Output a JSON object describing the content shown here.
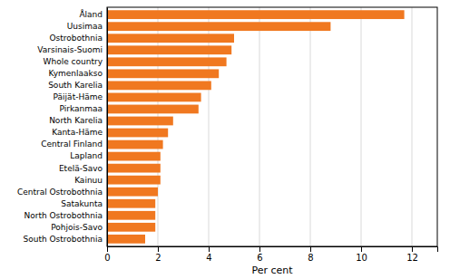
{
  "chart_data": {
    "type": "bar",
    "orientation": "horizontal",
    "categories": [
      "South Ostrobothnia",
      "Pohjois-Savo",
      "North Ostrobothnia",
      "Satakunta",
      "Central Ostrobothnia",
      "Kainuu",
      "Etelä-Savo",
      "Lapland",
      "Central Finland",
      "Kanta-Häme",
      "North Karelia",
      "Pirkanmaa",
      "Päijät-Häme",
      "South Karelia",
      "Kymenlaakso",
      "Whole country",
      "Varsinais-Suomi",
      "Ostrobothnia",
      "Uusimaa",
      "Åland"
    ],
    "values": [
      1.5,
      1.9,
      1.9,
      1.9,
      2.0,
      2.1,
      2.1,
      2.1,
      2.2,
      2.4,
      2.6,
      3.6,
      3.7,
      4.1,
      4.4,
      4.7,
      4.9,
      5.0,
      8.8,
      11.7
    ],
    "color": "#f07820",
    "xlabel": "Per cent",
    "xlim": [
      0,
      13
    ],
    "xticks": [
      0,
      2,
      4,
      6,
      8,
      10,
      12
    ],
    "grid": true
  }
}
